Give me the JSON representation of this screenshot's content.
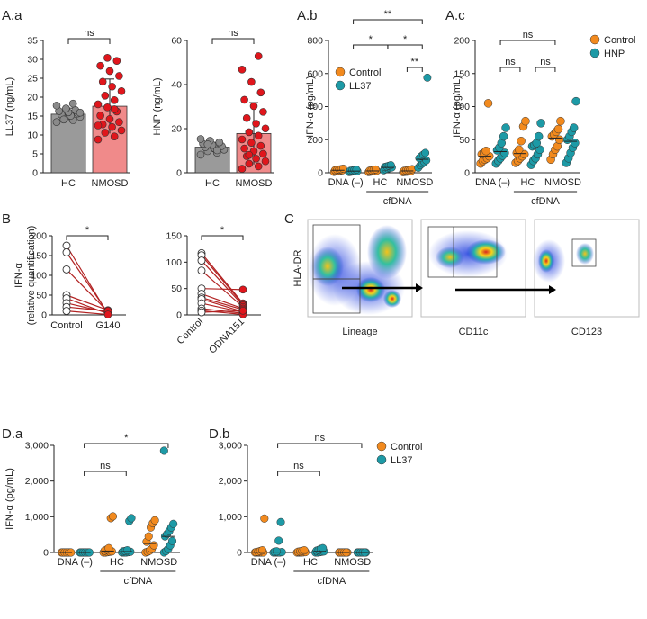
{
  "figure": {
    "panel_labels": [
      "A.a",
      "A.b",
      "A.c",
      "B",
      "C",
      "D.a",
      "D.b"
    ],
    "flow": {
      "plots": [
        {
          "xlabel": "Lineage",
          "ylabel": "HLA-DR"
        },
        {
          "xlabel": "CD11c",
          "ylabel": ""
        },
        {
          "xlabel": "CD123",
          "ylabel": ""
        }
      ]
    }
  },
  "colors": {
    "control_orange": "#f28a1e",
    "ll37_teal": "#1d9aa6",
    "hc_bar": "#9a9a9a",
    "nmosd_bar": "#f08a8a",
    "nmosd_dot": "#e0161c",
    "pair_line": "#b22222"
  },
  "chart_data": [
    {
      "id": "Aa1",
      "type": "bar",
      "ylabel": "LL37 (ng/mL)",
      "ylim": [
        0,
        35
      ],
      "yticks": [
        0,
        5,
        10,
        15,
        20,
        25,
        30,
        35
      ],
      "categories": [
        "HC",
        "NMOSD"
      ],
      "bars": [
        15.5,
        17.6
      ],
      "errors": [
        1.6,
        7.2
      ],
      "points": [
        [
          13.4,
          13.9,
          14.4,
          14.8,
          15.1,
          15.4,
          15.7,
          16.0,
          16.3,
          16.6,
          17.0,
          17.8,
          18.3,
          14.1,
          15.9
        ],
        [
          8.8,
          9.6,
          10.6,
          11.2,
          12.1,
          12.8,
          13.4,
          14.2,
          15.1,
          16.2,
          17.3,
          18.1,
          19.2,
          20.4,
          21.6,
          22.8,
          24.1,
          25.6,
          26.9,
          28.3,
          29.6,
          30.4,
          12.5,
          16.8
        ]
      ],
      "brackets": [
        {
          "from": 0,
          "to": 1,
          "label": "ns"
        }
      ]
    },
    {
      "id": "Aa2",
      "type": "bar",
      "ylabel": "HNP (ng/mL)",
      "ylim": [
        0,
        60
      ],
      "yticks": [
        0,
        20,
        40,
        60
      ],
      "categories": [
        "HC",
        "NMOSD"
      ],
      "bars": [
        11.6,
        17.8
      ],
      "errors": [
        2.2,
        14.0
      ],
      "points": [
        [
          8.2,
          9.1,
          9.8,
          10.5,
          11.0,
          11.6,
          12.1,
          12.6,
          13.2,
          13.8,
          14.5,
          15.3,
          10.2,
          12.9
        ],
        [
          1.8,
          2.9,
          4.1,
          5.2,
          6.4,
          7.5,
          8.6,
          9.8,
          11.0,
          12.2,
          13.6,
          15.1,
          16.8,
          18.4,
          20.1,
          22.3,
          24.8,
          27.6,
          30.2,
          33.1,
          36.4,
          41.2,
          46.8,
          52.9,
          8.1
        ]
      ],
      "brackets": [
        {
          "from": 0,
          "to": 1,
          "label": "ns"
        }
      ]
    },
    {
      "id": "Ab",
      "type": "scatter",
      "ylabel": "IFN-α (pg/mL)",
      "ylim": [
        0,
        800
      ],
      "yticks": [
        0,
        200,
        400,
        600,
        800
      ],
      "groups": [
        "DNA (–)",
        "HC",
        "NMOSD"
      ],
      "cfdna_label": "cfDNA",
      "cfdna_groups": [
        1,
        2
      ],
      "legend": {
        "position": "top-left",
        "entries": [
          "Control",
          "LL37"
        ]
      },
      "series": [
        {
          "name": "Control",
          "color_key": "control_orange",
          "values": [
            [
              5,
              8,
              10,
              12,
              14,
              16,
              18,
              20,
              22,
              25
            ],
            [
              4,
              6,
              8,
              9,
              11,
              13,
              15,
              17,
              20
            ],
            [
              3,
              5,
              6,
              8,
              10,
              12,
              14,
              16,
              18,
              22
            ]
          ]
        },
        {
          "name": "LL37",
          "color_key": "ll37_teal",
          "values": [
            [
              4,
              6,
              8,
              9,
              10,
              12,
              14,
              16,
              19
            ],
            [
              15,
              20,
              25,
              28,
              32,
              35,
              38,
              42,
              46
            ],
            [
              30,
              45,
              55,
              65,
              75,
              88,
              100,
              110,
              120,
              575
            ]
          ]
        }
      ],
      "brackets": [
        {
          "from": [
            0,
            1
          ],
          "to": [
            1,
            1
          ],
          "label": "*"
        },
        {
          "from": [
            1,
            1
          ],
          "to": [
            2,
            1
          ],
          "label": "*"
        },
        {
          "from": [
            0,
            1
          ],
          "to": [
            2,
            1
          ],
          "label": "**"
        },
        {
          "from": [
            2,
            0
          ],
          "to": [
            2,
            1
          ],
          "label": "**"
        }
      ]
    },
    {
      "id": "Ac",
      "type": "scatter",
      "ylabel": "IFN-α (pg/mL)",
      "ylim": [
        0,
        200
      ],
      "yticks": [
        0,
        50,
        100,
        150,
        200
      ],
      "groups": [
        "DNA (–)",
        "HC",
        "NMOSD"
      ],
      "cfdna_label": "cfDNA",
      "cfdna_groups": [
        1,
        2
      ],
      "legend": {
        "position": "outside-right",
        "entries": [
          "Control",
          "HNP"
        ]
      },
      "series": [
        {
          "name": "Control",
          "color_key": "control_orange",
          "values": [
            [
              14,
              18,
              20,
              22,
              25,
              28,
              30,
              33,
              105
            ],
            [
              15,
              18,
              22,
              25,
              28,
              30,
              35,
              48,
              70,
              78
            ],
            [
              20,
              28,
              35,
              40,
              50,
              55,
              58,
              62,
              66,
              78
            ]
          ]
        },
        {
          "name": "HNP",
          "color_key": "ll37_teal",
          "values": [
            [
              14,
              18,
              22,
              26,
              30,
              34,
              38,
              45,
              55,
              68
            ],
            [
              12,
              18,
              22,
              28,
              35,
              40,
              42,
              45,
              55,
              75
            ],
            [
              15,
              22,
              30,
              38,
              45,
              50,
              55,
              62,
              68,
              108
            ]
          ]
        }
      ],
      "brackets": [
        {
          "from": [
            0,
            1
          ],
          "to": [
            1,
            0
          ],
          "label": "ns"
        },
        {
          "from": [
            1,
            1
          ],
          "to": [
            2,
            0
          ],
          "label": "ns"
        },
        {
          "from": [
            0,
            1
          ],
          "to": [
            2,
            0
          ],
          "label": "ns"
        }
      ]
    },
    {
      "id": "B1",
      "type": "paired",
      "ylabel": "IFN-α\n(relative quantification)",
      "ylim": [
        0,
        200
      ],
      "yticks": [
        0,
        50,
        100,
        150,
        200
      ],
      "categories": [
        "Control",
        "G140"
      ],
      "pairs": [
        [
          175,
          2
        ],
        [
          158,
          5
        ],
        [
          115,
          8
        ],
        [
          50,
          12
        ],
        [
          42,
          3
        ],
        [
          30,
          6
        ],
        [
          20,
          10
        ],
        [
          10,
          1
        ]
      ],
      "brackets": [
        {
          "from": 0,
          "to": 1,
          "label": "*"
        }
      ]
    },
    {
      "id": "B2",
      "type": "paired",
      "ylabel": "",
      "ylim": [
        0,
        150
      ],
      "yticks": [
        0,
        50,
        100,
        150
      ],
      "categories": [
        "Control",
        "ODNA151"
      ],
      "pairs": [
        [
          117,
          22
        ],
        [
          113,
          20
        ],
        [
          103,
          18
        ],
        [
          84,
          15
        ],
        [
          50,
          48
        ],
        [
          40,
          12
        ],
        [
          33,
          10
        ],
        [
          30,
          6
        ],
        [
          22,
          5
        ],
        [
          12,
          3
        ],
        [
          8,
          1
        ],
        [
          5,
          8
        ]
      ],
      "brackets": [
        {
          "from": 0,
          "to": 1,
          "label": "*"
        }
      ]
    },
    {
      "id": "Da",
      "type": "scatter",
      "ylabel": "IFN-α (pg/mL)",
      "ylim": [
        0,
        3000
      ],
      "yticks": [
        0,
        1000,
        2000,
        3000
      ],
      "ytick_labels": [
        "0",
        "1,000",
        "2,000",
        "3,000"
      ],
      "groups": [
        "DNA (–)",
        "HC",
        "NMOSD"
      ],
      "cfdna_label": "cfDNA",
      "cfdna_groups": [
        1,
        2
      ],
      "series": [
        {
          "name": "Control",
          "color_key": "control_orange",
          "values": [
            [
              0,
              0,
              0,
              0,
              0,
              0,
              0,
              0,
              0,
              0
            ],
            [
              0,
              0,
              10,
              20,
              30,
              50,
              80,
              120,
              960,
              1010
            ],
            [
              0,
              20,
              50,
              100,
              200,
              300,
              450,
              700,
              820,
              900
            ]
          ]
        },
        {
          "name": "LL37",
          "color_key": "ll37_teal",
          "values": [
            [
              0,
              0,
              0,
              0,
              0,
              0,
              0,
              0,
              0,
              0
            ],
            [
              0,
              0,
              0,
              10,
              20,
              30,
              40,
              60,
              880,
              960
            ],
            [
              0,
              40,
              100,
              200,
              320,
              450,
              520,
              600,
              700,
              800,
              2850
            ]
          ]
        }
      ],
      "brackets": [
        {
          "from": [
            0,
            1
          ],
          "to": [
            1,
            1
          ],
          "label": "ns"
        },
        {
          "from": [
            0,
            1
          ],
          "to": [
            2,
            1
          ],
          "label": "*"
        }
      ]
    },
    {
      "id": "Db",
      "type": "scatter",
      "ylabel": "",
      "ylim": [
        0,
        3000
      ],
      "yticks": [
        0,
        1000,
        2000,
        3000
      ],
      "ytick_labels": [
        "0",
        "1,000",
        "2,000",
        "3,000"
      ],
      "groups": [
        "DNA (–)",
        "HC",
        "NMOSD"
      ],
      "cfdna_label": "cfDNA",
      "cfdna_groups": [
        1,
        2
      ],
      "legend": {
        "position": "top-right",
        "entries": [
          "Control",
          "LL37"
        ]
      },
      "series": [
        {
          "name": "Control",
          "color_key": "control_orange",
          "values": [
            [
              0,
              0,
              0,
              0,
              0,
              10,
              20,
              40,
              60,
              950
            ],
            [
              0,
              0,
              0,
              5,
              10,
              20,
              30,
              40,
              60
            ],
            [
              0,
              0,
              0,
              0,
              0,
              0,
              0,
              0,
              0
            ]
          ]
        },
        {
          "name": "LL37",
          "color_key": "ll37_teal",
          "values": [
            [
              0,
              0,
              0,
              0,
              10,
              20,
              30,
              330,
              850
            ],
            [
              0,
              0,
              10,
              20,
              30,
              50,
              70,
              100,
              120
            ],
            [
              0,
              0,
              0,
              0,
              0,
              0,
              0,
              0,
              0
            ]
          ]
        }
      ],
      "brackets": [
        {
          "from": [
            0,
            1
          ],
          "to": [
            1,
            1
          ],
          "label": "ns"
        },
        {
          "from": [
            0,
            1
          ],
          "to": [
            2,
            1
          ],
          "label": "ns"
        }
      ]
    }
  ]
}
